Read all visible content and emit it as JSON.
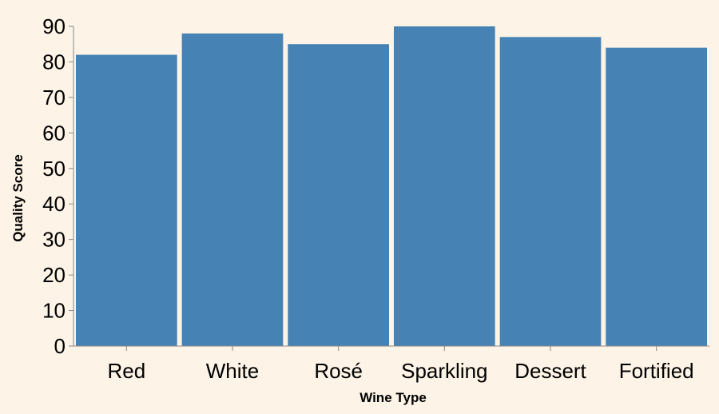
{
  "chart_data": {
    "type": "bar",
    "categories": [
      "Red",
      "White",
      "Rosé",
      "Sparkling",
      "Dessert",
      "Fortified"
    ],
    "values": [
      82,
      88,
      85,
      90,
      87,
      84
    ],
    "title": "",
    "xlabel": "Wine Type",
    "ylabel": "Quality Score",
    "ylim": [
      0,
      90
    ],
    "yticks": [
      0,
      10,
      20,
      30,
      40,
      50,
      60,
      70,
      80,
      90
    ],
    "grid": false,
    "colors": {
      "bar": "#4682b4",
      "axis": "#888888",
      "background": "#fdf3e6"
    }
  }
}
